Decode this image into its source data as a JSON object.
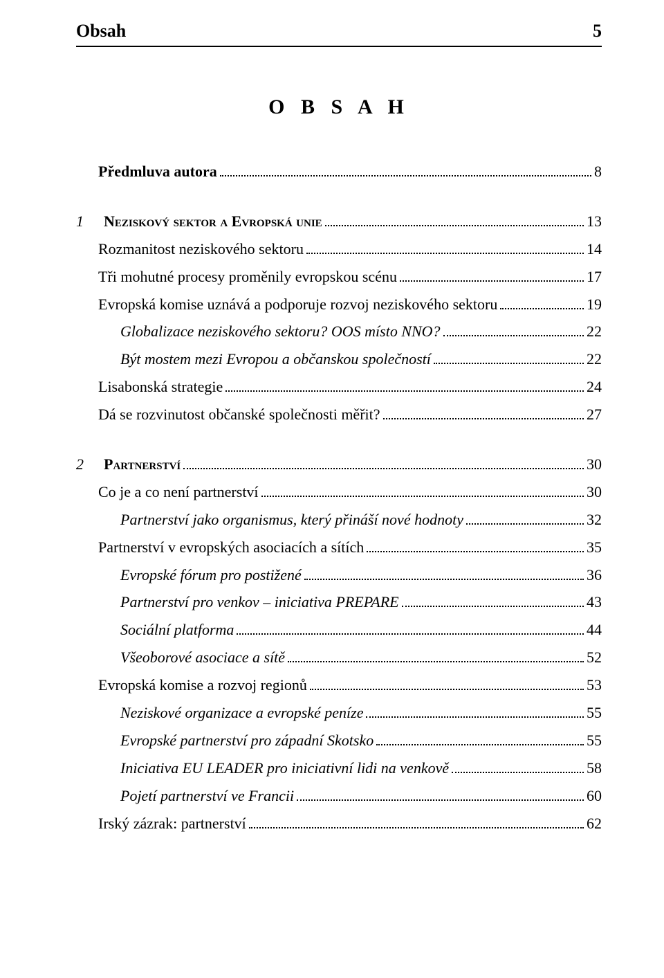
{
  "header": {
    "running_title": "Obsah",
    "page_number": "5"
  },
  "title": "O B S A H",
  "entries": [
    {
      "num": "",
      "label": "Předmluva autora",
      "page": "8",
      "style": "bold",
      "indent": 0,
      "gap_top": false
    },
    {
      "num": "1",
      "label": "Neziskový sektor a Evropská unie",
      "page": "13",
      "style": "bold smallcaps",
      "indent": 0,
      "gap_top": true
    },
    {
      "num": "",
      "label": "Rozmanitost neziskového sektoru",
      "page": "14",
      "style": "",
      "indent": 0,
      "gap_top": false
    },
    {
      "num": "",
      "label": "Tři mohutné procesy proměnily evropskou scénu",
      "page": "17",
      "style": "",
      "indent": 0,
      "gap_top": false
    },
    {
      "num": "",
      "label": "Evropská komise uznává a podporuje rozvoj neziskového sektoru",
      "page": "19",
      "style": "",
      "indent": 0,
      "gap_top": false
    },
    {
      "num": "",
      "label": "Globalizace neziskového sektoru? OOS místo NNO?",
      "page": "22",
      "style": "italic",
      "indent": 1,
      "gap_top": false
    },
    {
      "num": "",
      "label": "Být mostem mezi Evropou a občanskou společností",
      "page": "22",
      "style": "italic",
      "indent": 1,
      "gap_top": false
    },
    {
      "num": "",
      "label": "Lisabonská strategie",
      "page": "24",
      "style": "",
      "indent": 0,
      "gap_top": false
    },
    {
      "num": "",
      "label": "Dá se rozvinutost občanské společnosti měřit?",
      "page": "27",
      "style": "",
      "indent": 0,
      "gap_top": false
    },
    {
      "num": "2",
      "label": "Partnerství",
      "page": "30",
      "style": "bold smallcaps",
      "indent": 0,
      "gap_top": true
    },
    {
      "num": "",
      "label": "Co je a co není partnerství",
      "page": "30",
      "style": "",
      "indent": 0,
      "gap_top": false
    },
    {
      "num": "",
      "label": "Partnerství jako organismus, který přináší nové hodnoty",
      "page": "32",
      "style": "italic",
      "indent": 1,
      "gap_top": false
    },
    {
      "num": "",
      "label": "Partnerství v evropských asociacích a sítích",
      "page": "35",
      "style": "",
      "indent": 0,
      "gap_top": false
    },
    {
      "num": "",
      "label": "Evropské fórum pro postižené",
      "page": "36",
      "style": "italic",
      "indent": 1,
      "gap_top": false
    },
    {
      "num": "",
      "label": "Partnerství pro venkov – iniciativa PREPARE",
      "page": "43",
      "style": "italic",
      "indent": 1,
      "gap_top": false
    },
    {
      "num": "",
      "label": "Sociální platforma",
      "page": "44",
      "style": "italic",
      "indent": 1,
      "gap_top": false
    },
    {
      "num": "",
      "label": "Všeoborové asociace a sítě",
      "page": "52",
      "style": "italic",
      "indent": 1,
      "gap_top": false
    },
    {
      "num": "",
      "label": "Evropská komise a rozvoj regionů",
      "page": "53",
      "style": "",
      "indent": 0,
      "gap_top": false
    },
    {
      "num": "",
      "label": "Neziskové organizace a evropské peníze",
      "page": "55",
      "style": "italic",
      "indent": 1,
      "gap_top": false
    },
    {
      "num": "",
      "label": "Evropské partnerství pro západní Skotsko",
      "page": "55",
      "style": "italic",
      "indent": 1,
      "gap_top": false
    },
    {
      "num": "",
      "label": "Iniciativa EU LEADER pro iniciativní lidi na venkově",
      "page": "58",
      "style": "italic",
      "indent": 1,
      "gap_top": false
    },
    {
      "num": "",
      "label": "Pojetí partnerství ve Francii",
      "page": "60",
      "style": "italic",
      "indent": 1,
      "gap_top": false
    },
    {
      "num": "",
      "label": "Irský zázrak: partnerství",
      "page": "62",
      "style": "",
      "indent": 0,
      "gap_top": false
    }
  ]
}
